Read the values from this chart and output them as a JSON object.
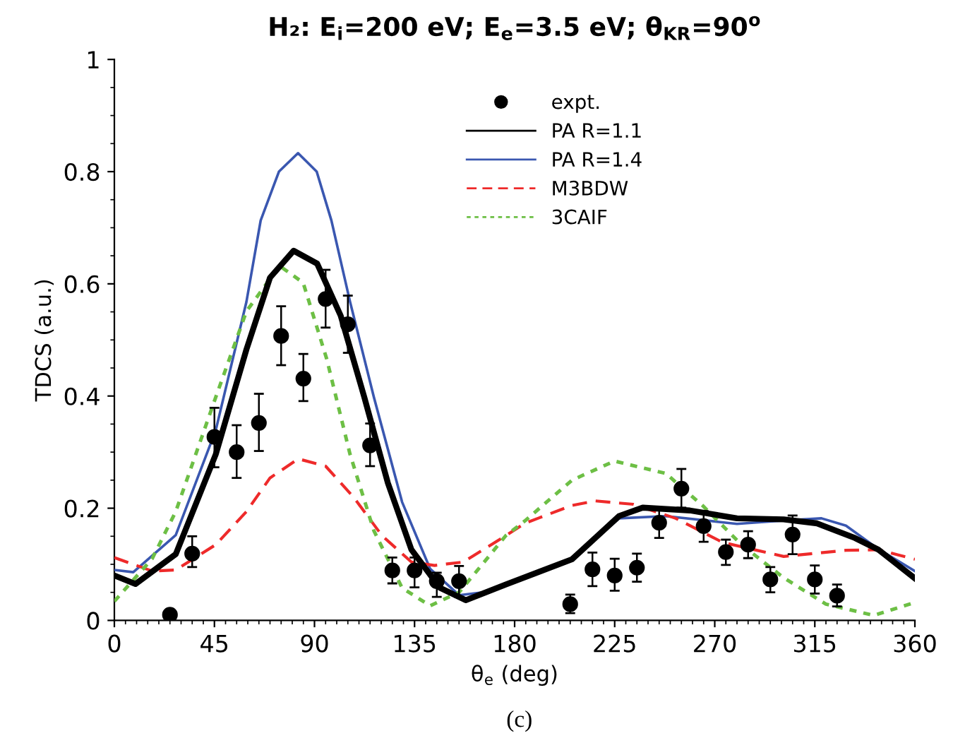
{
  "chart_data": {
    "type": "line",
    "title": "H₂: E$_{i}$=200 eV; E$_{e}$=3.5 eV; θ$_{KR}$=90$^{o}$",
    "xlabel": "θ$_{e}$ (deg)",
    "ylabel": "TDCS (a.u.)",
    "annotations": [
      "(c)"
    ],
    "xlim": [
      0,
      360
    ],
    "xticks": [
      0,
      45,
      90,
      135,
      180,
      225,
      270,
      315,
      360
    ],
    "ylim": [
      0,
      1
    ],
    "yticks": [
      0,
      0.2,
      0.4,
      0.6,
      0.8,
      1
    ],
    "grid": false,
    "legend": "top center",
    "series": [
      {
        "name": "expt.",
        "type": "scatter",
        "marker": "circle",
        "color": "#000000",
        "x": [
          25,
          35,
          45,
          55,
          65,
          75,
          85,
          95,
          105,
          115,
          125,
          135,
          145,
          155,
          205,
          215,
          225,
          235,
          245,
          255,
          265,
          275,
          285,
          295,
          305,
          315,
          325
        ],
        "values": [
          0.01,
          0.119,
          0.327,
          0.3,
          0.352,
          0.507,
          0.431,
          0.573,
          0.528,
          0.312,
          0.089,
          0.089,
          0.07,
          0.07,
          0.029,
          0.091,
          0.08,
          0.094,
          0.174,
          0.235,
          0.168,
          0.122,
          0.135,
          0.073,
          0.153,
          0.073,
          0.044
        ],
        "errors": [
          null,
          [
            0.095,
            0.15
          ],
          [
            0.273,
            0.379
          ],
          [
            0.254,
            0.348
          ],
          [
            0.302,
            0.404
          ],
          [
            0.455,
            0.56
          ],
          [
            0.391,
            0.475
          ],
          [
            0.522,
            0.625
          ],
          [
            0.477,
            0.579
          ],
          [
            0.275,
            0.351
          ],
          [
            0.066,
            0.112
          ],
          [
            0.059,
            0.112
          ],
          [
            0.042,
            0.085
          ],
          [
            0.042,
            0.097
          ],
          [
            0.013,
            0.046
          ],
          [
            0.061,
            0.121
          ],
          [
            0.053,
            0.11
          ],
          [
            0.069,
            0.119
          ],
          [
            0.147,
            0.201
          ],
          [
            0.201,
            0.27
          ],
          [
            0.14,
            0.195
          ],
          [
            0.099,
            0.144
          ],
          [
            0.111,
            0.159
          ],
          [
            0.05,
            0.095
          ],
          [
            0.118,
            0.187
          ],
          [
            0.048,
            0.098
          ],
          [
            0.025,
            0.064
          ]
        ]
      },
      {
        "name": "PA R=1.1",
        "color": "#000000",
        "line_style": "solid",
        "x": [
          0,
          9.5,
          27.6,
          45.6,
          59.4,
          70,
          80.6,
          91.2,
          101.8,
          112.4,
          123,
          133.6,
          146.4,
          158,
          176,
          205.8,
          227,
          237.6,
          258.8,
          280,
          301,
          316,
          333,
          343.6,
          360
        ],
        "values": [
          0.08,
          0.065,
          0.118,
          0.296,
          0.483,
          0.611,
          0.659,
          0.636,
          0.543,
          0.398,
          0.245,
          0.126,
          0.058,
          0.036,
          0.064,
          0.109,
          0.186,
          0.201,
          0.196,
          0.182,
          0.18,
          0.173,
          0.147,
          0.126,
          0.075
        ]
      },
      {
        "name": "PA R=1.4",
        "color": "#3a57b0",
        "line_style": "solid",
        "x": [
          0,
          8.5,
          27.6,
          45.6,
          59.4,
          65.8,
          74,
          82.6,
          91,
          97.6,
          106,
          116.7,
          129.4,
          142,
          155,
          165.5,
          176,
          205.8,
          227,
          248,
          280,
          301,
          318,
          329,
          343.6,
          360
        ],
        "values": [
          0.09,
          0.086,
          0.152,
          0.339,
          0.568,
          0.713,
          0.8,
          0.833,
          0.8,
          0.713,
          0.568,
          0.398,
          0.211,
          0.092,
          0.045,
          0.05,
          0.066,
          0.11,
          0.182,
          0.186,
          0.172,
          0.178,
          0.182,
          0.169,
          0.127,
          0.088
        ]
      },
      {
        "name": "M3BDW",
        "color": "#ee2a2a",
        "line_style": "dashed",
        "x": [
          0,
          17,
          27.6,
          45.6,
          59.4,
          70,
          82.7,
          95,
          107.7,
          120.4,
          133.6,
          144,
          156.9,
          176,
          184.5,
          205.8,
          216.4,
          233.4,
          252.4,
          273.6,
          301,
          329,
          343.6,
          360
        ],
        "values": [
          0.112,
          0.088,
          0.09,
          0.135,
          0.194,
          0.254,
          0.288,
          0.275,
          0.219,
          0.151,
          0.104,
          0.098,
          0.104,
          0.151,
          0.173,
          0.205,
          0.213,
          0.207,
          0.182,
          0.139,
          0.114,
          0.125,
          0.126,
          0.109
        ]
      },
      {
        "name": "3CAIF",
        "color": "#6dbf45",
        "line_style": "dotted",
        "x": [
          0,
          17,
          27.6,
          45.6,
          59.4,
          74.3,
          84.9,
          95.5,
          106,
          116.7,
          129.4,
          142,
          155,
          163.4,
          176,
          184.5,
          205.8,
          224.9,
          248,
          265,
          282,
          301,
          320,
          341.5,
          360
        ],
        "values": [
          0.034,
          0.11,
          0.194,
          0.398,
          0.551,
          0.632,
          0.602,
          0.466,
          0.296,
          0.16,
          0.058,
          0.026,
          0.05,
          0.09,
          0.151,
          0.177,
          0.25,
          0.284,
          0.262,
          0.203,
          0.135,
          0.076,
          0.029,
          0.009,
          0.032
        ]
      }
    ]
  }
}
